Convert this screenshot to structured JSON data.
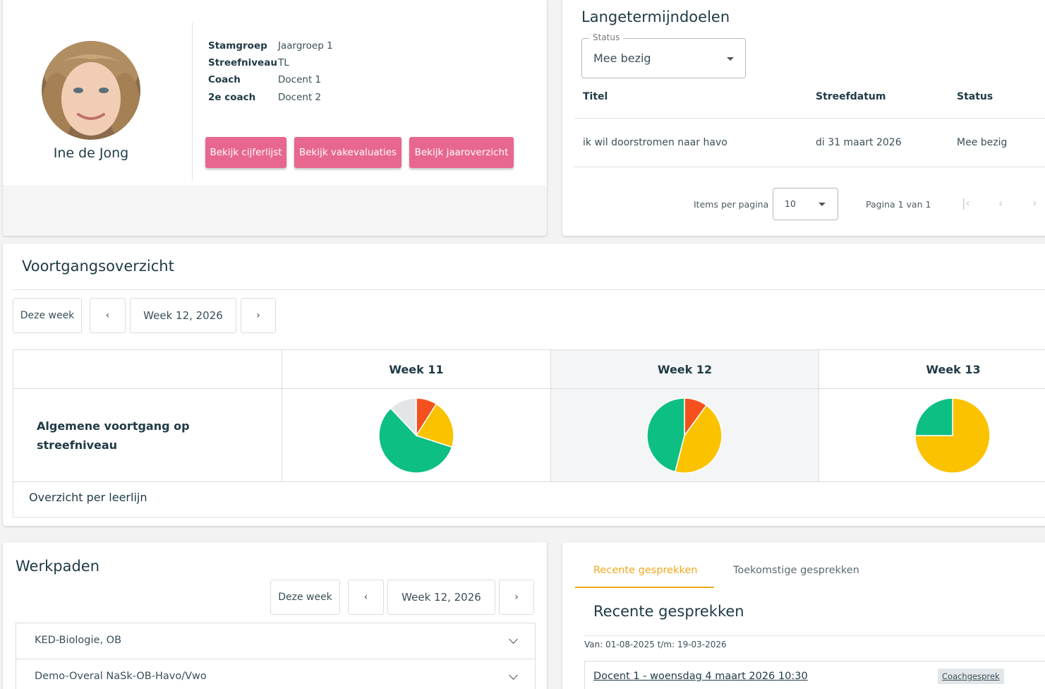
{
  "profile": {
    "name": "Ine de Jong",
    "info": [
      {
        "key": "Stamgroep",
        "value": "Jaargroep 1"
      },
      {
        "key": "Streefniveau",
        "value": "TL"
      },
      {
        "key": "Coach",
        "value": "Docent 1"
      },
      {
        "key": "2e coach",
        "value": "Docent 2"
      }
    ],
    "buttons": [
      "Bekijk cijferlijst",
      "Bekijk vakevaluaties",
      "Bekijk jaaroverzicht"
    ]
  },
  "langetermijndoelen": {
    "title": "Langetermijndoelen",
    "status_filter": {
      "label": "Status",
      "value": "Mee bezig"
    },
    "columns": [
      "Titel",
      "Streefdatum",
      "Status"
    ],
    "rows": [
      {
        "titel": "ik wil doorstromen naar havo",
        "streefdatum": "di 31 maart 2026",
        "status": "Mee bezig"
      }
    ],
    "pagination": {
      "items_label": "Items per pagina",
      "items_value": "10",
      "page_text": "Pagina 1 van 1"
    }
  },
  "voortgang": {
    "title": "Voortgangsoverzicht",
    "this_week": "Deze week",
    "current_week": "Week 12, 2026",
    "weeks": [
      "Week 11",
      "Week 12",
      "Week 13"
    ],
    "row_label": "Algemene voortgang op streefniveau",
    "footer_link": "Overzicht per leerlijn",
    "colors": {
      "red": "#f4511e",
      "yellow": "#fbc200",
      "green": "#0dbf83",
      "grey": "#e2e6e8"
    },
    "pies": [
      {
        "week": "Week 11",
        "slices": [
          {
            "color": "red",
            "fraction": 0.09
          },
          {
            "color": "yellow",
            "fraction": 0.21
          },
          {
            "color": "green",
            "fraction": 0.58
          },
          {
            "color": "grey",
            "fraction": 0.12
          }
        ]
      },
      {
        "week": "Week 12",
        "slices": [
          {
            "color": "red",
            "fraction": 0.1
          },
          {
            "color": "yellow",
            "fraction": 0.44
          },
          {
            "color": "green",
            "fraction": 0.46
          }
        ]
      },
      {
        "week": "Week 13",
        "slices": [
          {
            "color": "yellow",
            "fraction": 0.75
          },
          {
            "color": "green",
            "fraction": 0.25
          }
        ]
      }
    ]
  },
  "werkpaden": {
    "title": "Werkpaden",
    "this_week": "Deze week",
    "current_week": "Week 12, 2026",
    "items": [
      "KED-Biologie, OB",
      "Demo-Overal NaSk-OB-Havo/Vwo"
    ]
  },
  "gesprekken": {
    "tabs": [
      "Recente gesprekken",
      "Toekomstige gesprekken"
    ],
    "title": "Recente gesprekken",
    "range": "Van: 01-08-2025 t/m: 19-03-2026",
    "items": [
      {
        "label": "Docent 1 - woensdag 4 maart 2026 10:30",
        "badge": "Coachgesprek"
      }
    ]
  }
}
